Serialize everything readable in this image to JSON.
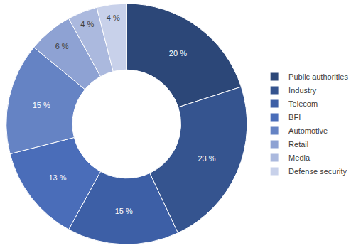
{
  "chart_data": {
    "type": "pie",
    "categories": [
      "Public authorities",
      "Industry",
      "Telecom",
      "BFI",
      "Automotive",
      "Retail",
      "Media",
      "Defense security"
    ],
    "values": [
      20,
      23,
      15,
      13,
      15,
      6,
      4,
      4
    ],
    "value_labels": [
      "20 %",
      "23 %",
      "15 %",
      "13 %",
      "15 %",
      "6 %",
      "4 %",
      "4 %"
    ],
    "colors": [
      "#2c4778",
      "#35548f",
      "#3d5fa6",
      "#4a6db9",
      "#6583c4",
      "#8ea2d3",
      "#abb9de",
      "#c8d1ea"
    ],
    "data_labels": true,
    "legend": "right"
  }
}
